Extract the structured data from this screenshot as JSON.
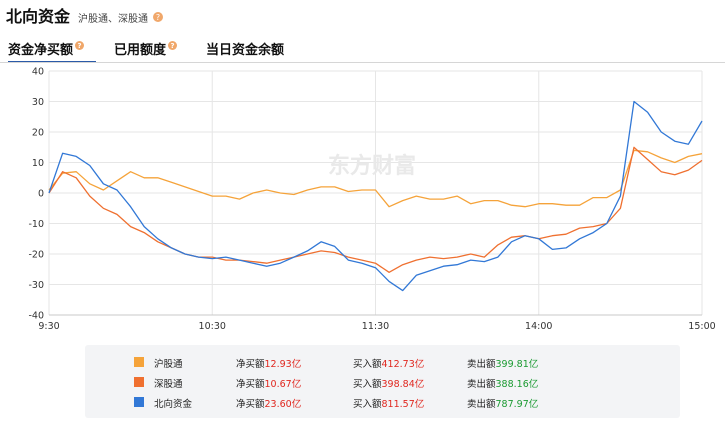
{
  "header": {
    "title": "北向资金",
    "subtitle": "沪股通、深股通",
    "help_glyph": "?"
  },
  "tabs": [
    {
      "label": "资金净买额",
      "active": true,
      "has_help": true
    },
    {
      "label": "已用额度",
      "active": false,
      "has_help": true
    },
    {
      "label": "当日资金余额",
      "active": false,
      "has_help": false
    }
  ],
  "watermark": "东方财富",
  "chart_data": {
    "type": "line",
    "title": "",
    "xlabel": "",
    "ylabel": "",
    "ylim": [
      -40,
      40
    ],
    "yticks": [
      40,
      30,
      20,
      10,
      0,
      -10,
      -20,
      -30,
      -40
    ],
    "xticks": [
      "9:30",
      "10:30",
      "11:30",
      "14:00",
      "15:00"
    ],
    "x_range_minutes": [
      0,
      240
    ],
    "grid": true,
    "x": [
      0,
      5,
      10,
      15,
      20,
      25,
      30,
      35,
      40,
      45,
      50,
      55,
      60,
      65,
      70,
      75,
      80,
      85,
      90,
      95,
      100,
      105,
      110,
      115,
      120,
      125,
      130,
      135,
      140,
      145,
      150,
      155,
      160,
      165,
      170,
      175,
      180,
      185,
      190,
      195,
      200,
      205,
      210,
      215,
      220,
      225,
      230,
      235,
      240
    ],
    "series": [
      {
        "name": "沪股通",
        "color": "#f5a33a",
        "values": [
          1,
          6.5,
          7,
          3,
          1,
          4,
          7,
          5,
          5,
          3.5,
          2,
          0.5,
          -1,
          -1,
          -2,
          0,
          1,
          0,
          -0.5,
          1,
          2,
          2,
          0.5,
          1,
          1,
          -4.5,
          -2.5,
          -1,
          -2,
          -2,
          -1,
          -3.5,
          -2.5,
          -2.5,
          -4,
          -4.5,
          -3.5,
          -3.5,
          -4,
          -4,
          -1.5,
          -1.5,
          1,
          14,
          13.5,
          11.5,
          10,
          12,
          12.9
        ]
      },
      {
        "name": "深股通",
        "color": "#ef7030",
        "values": [
          0,
          7,
          5,
          -1,
          -5,
          -7,
          -11,
          -13,
          -16,
          -18,
          -20,
          -21,
          -21,
          -22,
          -22,
          -22.5,
          -23,
          -22,
          -21,
          -20,
          -19,
          -19.5,
          -21,
          -22,
          -23,
          -26,
          -23.5,
          -22,
          -21,
          -21.5,
          -21,
          -20,
          -21,
          -17,
          -14.5,
          -14,
          -15,
          -14,
          -13.5,
          -11.5,
          -11,
          -10,
          -5,
          15,
          11,
          7,
          6,
          7.5,
          10.7
        ]
      },
      {
        "name": "北向资金",
        "color": "#3278d6",
        "values": [
          0,
          13,
          12,
          9,
          3,
          1,
          -4.5,
          -11,
          -15,
          -18,
          -20,
          -21,
          -21.5,
          -21,
          -22,
          -23,
          -24,
          -23,
          -21,
          -19,
          -16,
          -17.5,
          -22,
          -23,
          -24.5,
          -29,
          -32,
          -27,
          -25.5,
          -24,
          -23.5,
          -22,
          -22.5,
          -21,
          -16,
          -14,
          -15,
          -18.5,
          -18,
          -15,
          -13,
          -10,
          -1,
          30,
          26.5,
          20,
          17,
          16,
          23.6
        ]
      }
    ]
  },
  "legend": {
    "net_label": "净买额",
    "buy_label": "买入额",
    "sell_label": "卖出额",
    "rows": [
      {
        "name": "沪股通",
        "color": "#f5a33a",
        "net": "12.93亿",
        "buy": "412.73亿",
        "sell": "399.81亿"
      },
      {
        "name": "深股通",
        "color": "#ef7030",
        "net": "10.67亿",
        "buy": "398.84亿",
        "sell": "388.16亿"
      },
      {
        "name": "北向资金",
        "color": "#3278d6",
        "net": "23.60亿",
        "buy": "811.57亿",
        "sell": "787.97亿"
      }
    ]
  }
}
